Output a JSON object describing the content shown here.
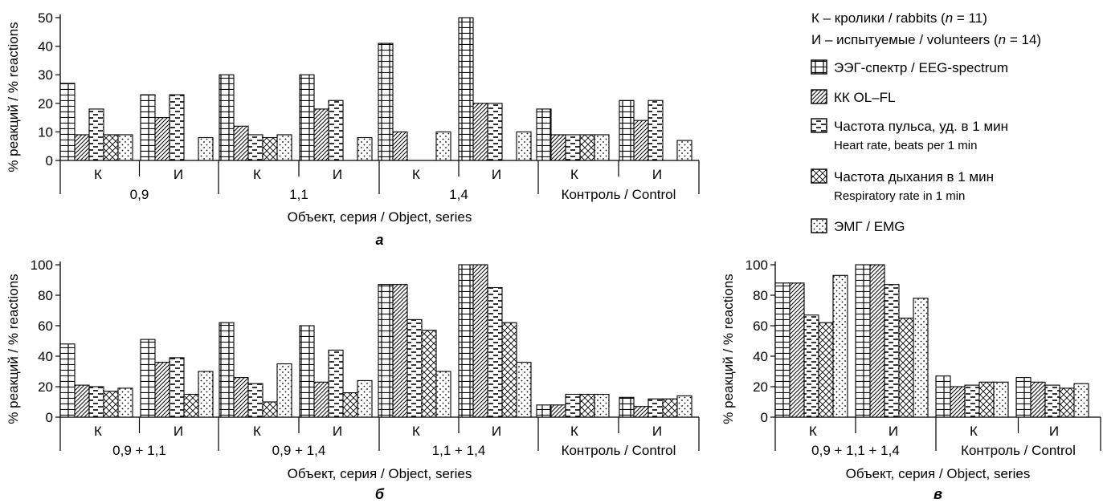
{
  "legend": {
    "animals_line": {
      "prefix": "К – кролики / rabbits (",
      "n_symbol": "n",
      "suffix": " = 11)"
    },
    "people_line": {
      "prefix": "И – испытуемые / volunteers (",
      "n_symbol": "n",
      "suffix": " = 14)"
    },
    "items": [
      {
        "line1": "ЭЭГ-спектр / EEG-spectrum",
        "line2": "",
        "pattern": "brick"
      },
      {
        "line1": "КК OL–FL",
        "line2": "",
        "pattern": "diag"
      },
      {
        "line1": "Частота пульса, уд. в 1 мин",
        "line2": "Heart rate, beats per 1 min",
        "pattern": "dash"
      },
      {
        "line1": "Частота дыхания в 1 мин",
        "line2": "Respiratory rate in 1 min",
        "pattern": "cross"
      },
      {
        "line1": "ЭМГ / EMG",
        "line2": "",
        "pattern": "dots"
      }
    ]
  },
  "chart_data": [
    {
      "type": "bar",
      "panel_label": "а",
      "ylabel": "% реакций / % reactions",
      "xlabel": "Объект, серия / Object, series",
      "ylim": [
        0,
        50
      ],
      "yticks": [
        0,
        10,
        20,
        30,
        40,
        50
      ],
      "series_names": [
        "ЭЭГ-спектр / EEG-spectrum",
        "КК OL–FL",
        "Частота пульса, уд. в 1 мин",
        "Частота дыхания в 1 мин",
        "ЭМГ / EMG"
      ],
      "groups": [
        {
          "label": "К",
          "values": [
            27,
            9,
            18,
            9,
            9
          ]
        },
        {
          "label": "И",
          "values": [
            23,
            15,
            23,
            null,
            8
          ]
        },
        {
          "label": "К",
          "values": [
            30,
            12,
            9,
            8,
            9
          ]
        },
        {
          "label": "И",
          "values": [
            30,
            18,
            21,
            null,
            8
          ]
        },
        {
          "label": "К",
          "values": [
            41,
            10,
            null,
            null,
            10
          ]
        },
        {
          "label": "И",
          "values": [
            50,
            20,
            20,
            null,
            10
          ]
        },
        {
          "label": "К",
          "values": [
            18,
            9,
            9,
            9,
            9
          ]
        },
        {
          "label": "И",
          "values": [
            21,
            14,
            21,
            null,
            7
          ]
        }
      ],
      "series_labels": [
        "0,9",
        "1,1",
        "1,4",
        "Контроль / Control"
      ]
    },
    {
      "type": "bar",
      "panel_label": "б",
      "ylabel": "% реакций / % reactions",
      "xlabel": "Объект, серия / Object, series",
      "ylim": [
        0,
        100
      ],
      "yticks": [
        0,
        20,
        40,
        60,
        80,
        100
      ],
      "series_names": [
        "ЭЭГ-спектр / EEG-spectrum",
        "КК OL–FL",
        "Частота пульса, уд. в 1 мин",
        "Частота дыхания в 1 мин",
        "ЭМГ / EMG"
      ],
      "groups": [
        {
          "label": "К",
          "values": [
            48,
            21,
            20,
            17,
            19
          ]
        },
        {
          "label": "И",
          "values": [
            51,
            36,
            39,
            15,
            30
          ]
        },
        {
          "label": "К",
          "values": [
            62,
            26,
            22,
            10,
            35
          ]
        },
        {
          "label": "И",
          "values": [
            60,
            23,
            44,
            16,
            24
          ]
        },
        {
          "label": "К",
          "values": [
            87,
            87,
            64,
            57,
            30
          ]
        },
        {
          "label": "И",
          "values": [
            100,
            100,
            85,
            62,
            36
          ]
        },
        {
          "label": "К",
          "values": [
            8,
            8,
            15,
            15,
            15
          ]
        },
        {
          "label": "И",
          "values": [
            13,
            7,
            12,
            12,
            14
          ]
        }
      ],
      "series_labels": [
        "0,9 + 1,1",
        "0,9 + 1,4",
        "1,1 + 1,4",
        "Контроль / Control"
      ]
    },
    {
      "type": "bar",
      "panel_label": "в",
      "ylabel": "% реакций / % reactions",
      "xlabel": "Объект, серия / Object, series",
      "ylim": [
        0,
        100
      ],
      "yticks": [
        0,
        20,
        40,
        60,
        80,
        100
      ],
      "series_names": [
        "ЭЭГ-спектр / EEG-spectrum",
        "КК OL–FL",
        "Частота пульса, уд. в 1 мин",
        "Частота дыхания в 1 мин",
        "ЭМГ / EMG"
      ],
      "groups": [
        {
          "label": "К",
          "values": [
            88,
            88,
            67,
            62,
            93
          ]
        },
        {
          "label": "И",
          "values": [
            100,
            100,
            87,
            65,
            78
          ]
        },
        {
          "label": "К",
          "values": [
            27,
            20,
            21,
            23,
            23
          ]
        },
        {
          "label": "И",
          "values": [
            26,
            23,
            21,
            19,
            22
          ]
        }
      ],
      "series_labels": [
        "0,9 + 1,1 + 1,4",
        "Контроль / Control"
      ]
    }
  ]
}
